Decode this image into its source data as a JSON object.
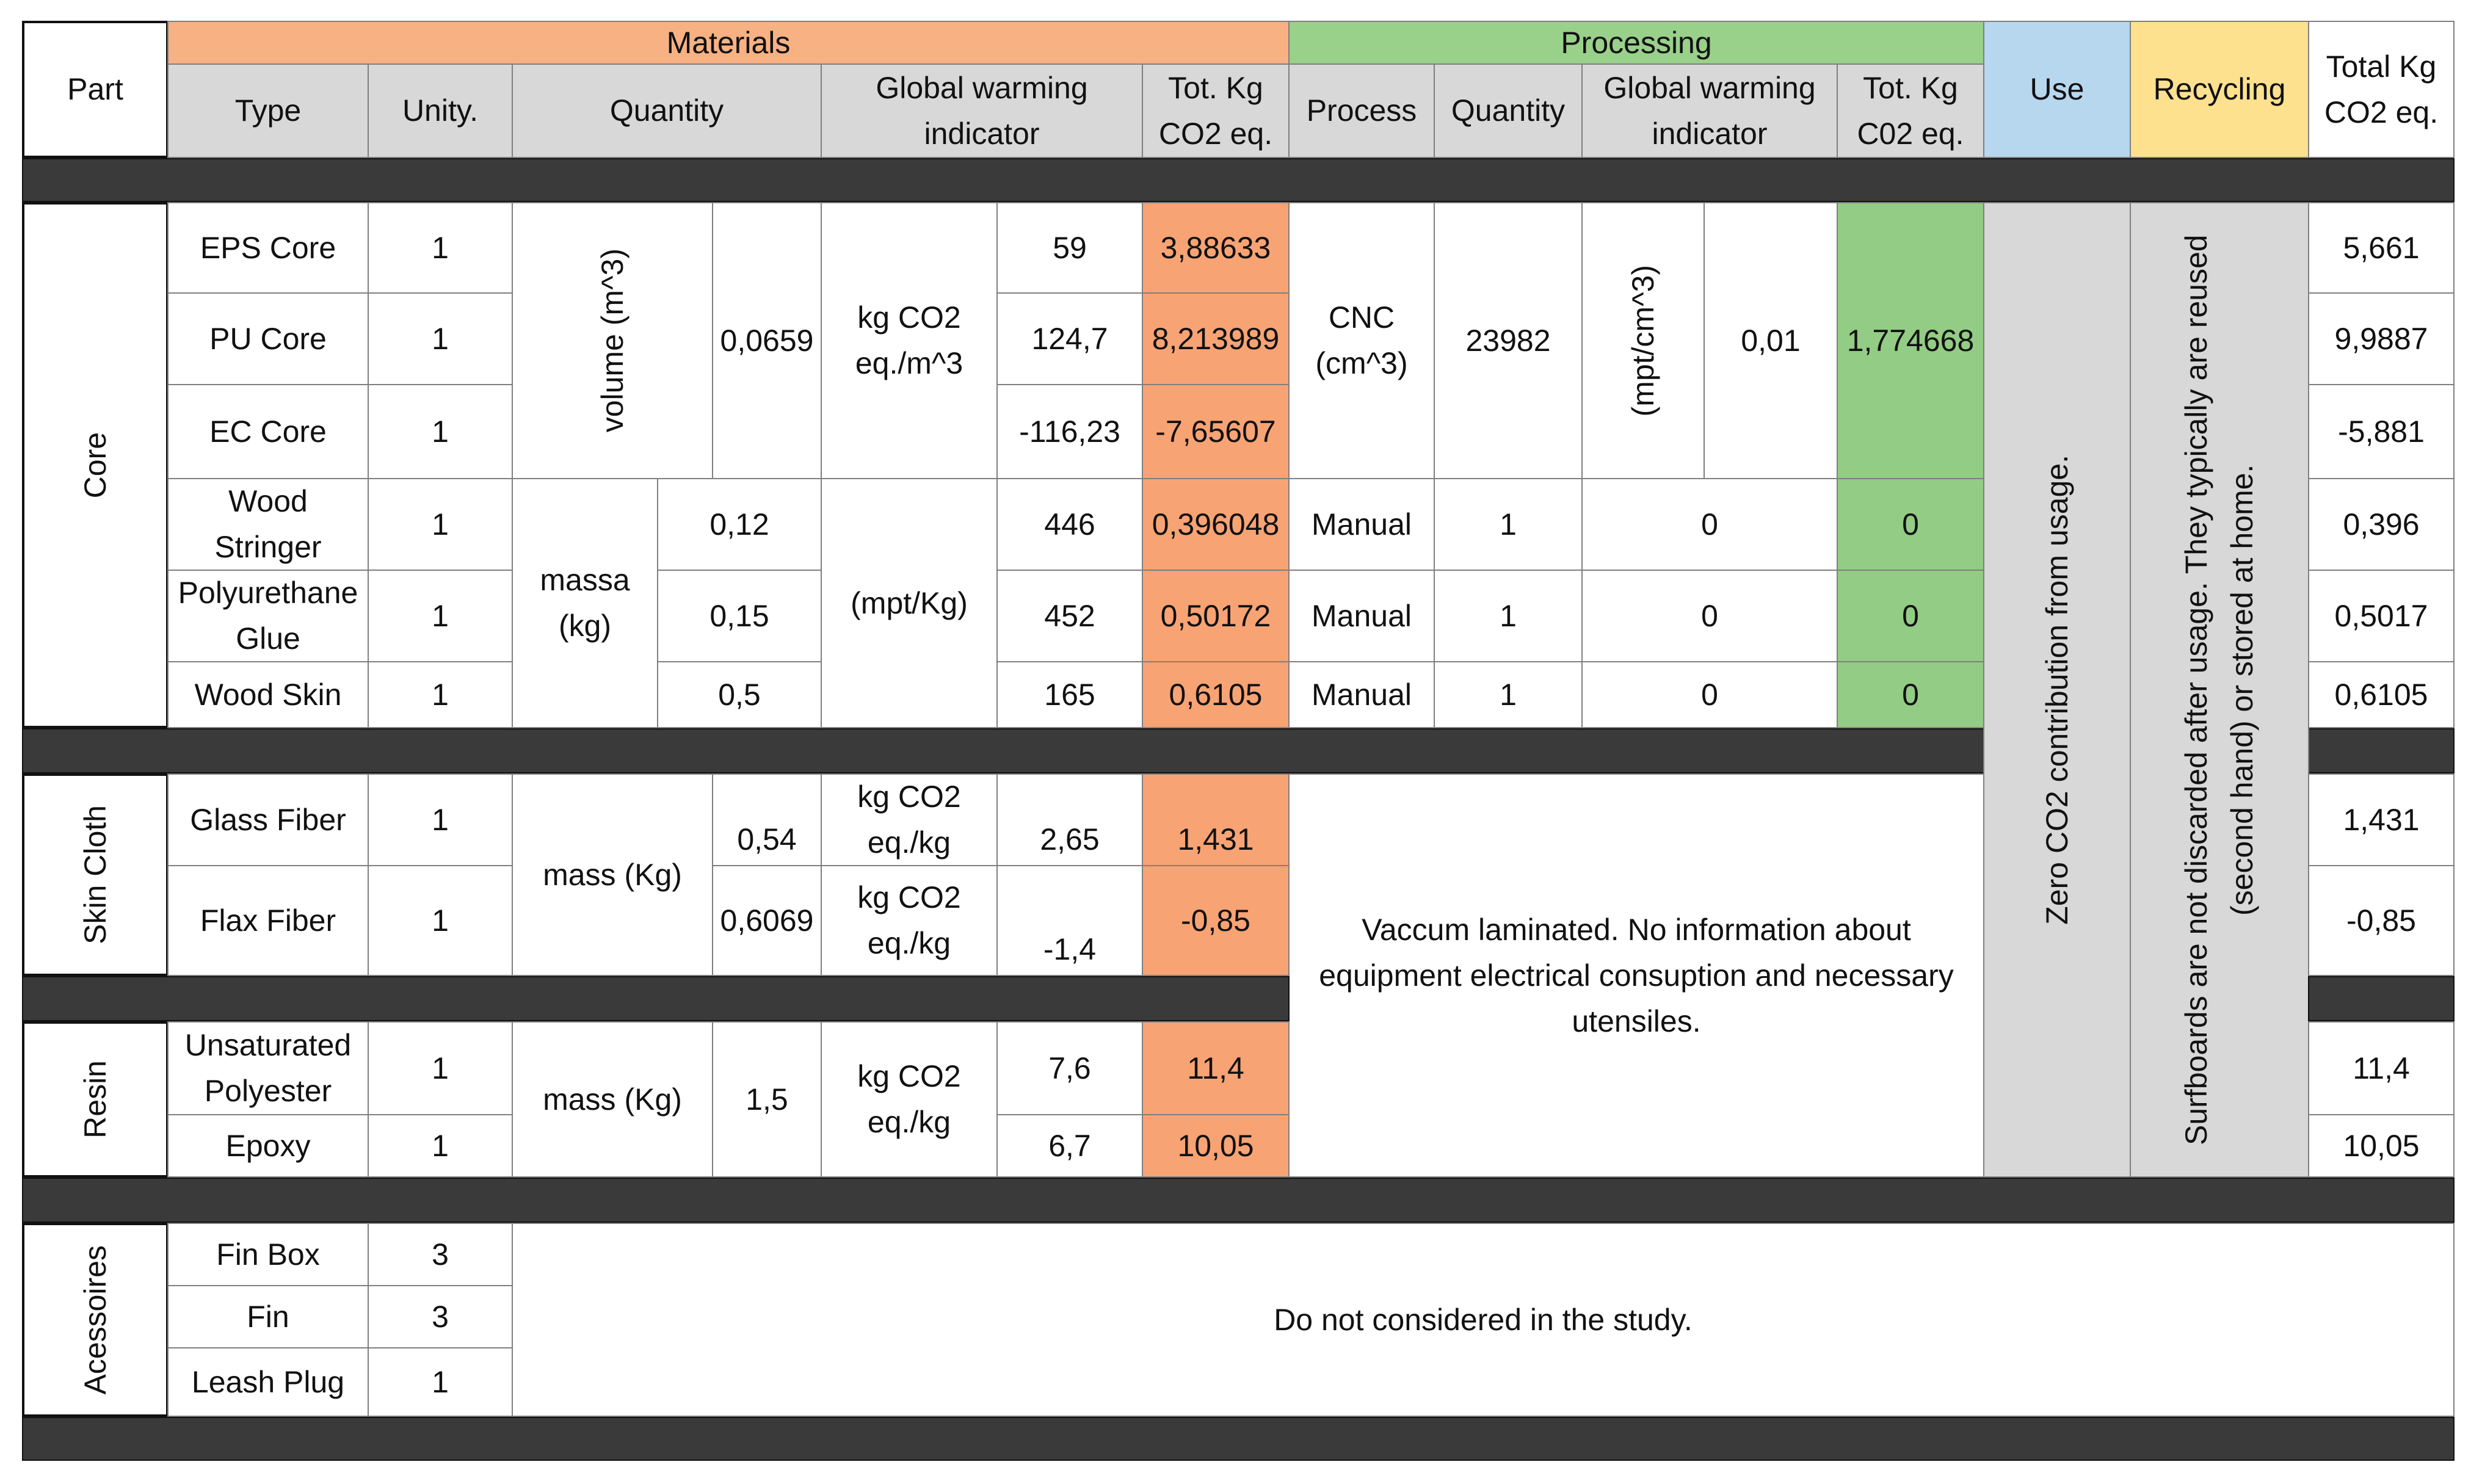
{
  "header": {
    "part": "Part",
    "materials": "Materials",
    "processing": "Processing",
    "use": "Use",
    "recycling": "Recycling",
    "total": "Total Kg CO2 eq.",
    "type": "Type",
    "unity": "Unity.",
    "quantity": "Quantity",
    "gwi": "Global warming indicator",
    "tot_mat": "Tot. Kg CO2 eq.",
    "process": "Process",
    "proc_quantity": "Quantity",
    "proc_gwi": "Global warming indicator",
    "tot_proc": "Tot. Kg C02 eq."
  },
  "groups": {
    "core": "Core",
    "skin_cloth": "Skin Cloth",
    "resin": "Resin",
    "accessories": "Acessoires"
  },
  "core": {
    "rows": [
      {
        "type": "EPS Core",
        "unity": "1",
        "gwi": "59",
        "tot": "3,88633",
        "total": "5,661"
      },
      {
        "type": "PU Core",
        "unity": "1",
        "gwi": "124,7",
        "tot": "8,213989",
        "total": "9,9887"
      },
      {
        "type": "EC Core",
        "unity": "1",
        "gwi": "-116,23",
        "tot": "-7,65607",
        "total": "-5,881"
      },
      {
        "type": "Wood Stringer",
        "unity": "1",
        "qty": "0,12",
        "gwi": "446",
        "tot": "0,396048",
        "process": "Manual",
        "proc_qty": "1",
        "proc_gwi": "0",
        "proc_tot": "0",
        "total": "0,396"
      },
      {
        "type": "Polyurethane Glue",
        "unity": "1",
        "qty": "0,15",
        "gwi": "452",
        "tot": "0,50172",
        "process": "Manual",
        "proc_qty": "1",
        "proc_gwi": "0",
        "proc_tot": "0",
        "total": "0,5017"
      },
      {
        "type": "Wood Skin",
        "unity": "1",
        "qty": "0,5",
        "gwi": "165",
        "tot": "0,6105",
        "process": "Manual",
        "proc_qty": "1",
        "proc_gwi": "0",
        "proc_tot": "0",
        "total": "0,6105"
      }
    ],
    "volume_label": "volume (m^3)",
    "volume_value": "0,0659",
    "volume_unit": "kg CO2 eq./m^3",
    "mass_label": "massa (kg)",
    "mass_unit": "(mpt/Kg)",
    "cnc_process": "CNC (cm^3)",
    "cnc_qty": "23982",
    "cnc_unit": "(mpt/cm^3)",
    "cnc_gwi": "0,01",
    "cnc_tot": "1,774668"
  },
  "skin_cloth": {
    "rows": [
      {
        "type": "Glass Fiber",
        "unity": "1",
        "qty": "0,54",
        "unit": "kg CO2 eq./kg",
        "gwi": "2,65",
        "tot": "1,431",
        "total": "1,431"
      },
      {
        "type": "Flax Fiber",
        "unity": "1",
        "qty": "0,6069",
        "unit": "kg CO2 eq./kg",
        "gwi": "-1,4",
        "tot": "-0,85",
        "total": "-0,85"
      }
    ],
    "mass_label": "mass (Kg)"
  },
  "resin": {
    "rows": [
      {
        "type": "Unsaturated Polyester",
        "unity": "1",
        "gwi": "7,6",
        "tot": "11,4",
        "total": "11,4"
      },
      {
        "type": "Epoxy",
        "unity": "1",
        "gwi": "6,7",
        "tot": "10,05",
        "total": "10,05"
      }
    ],
    "mass_label": "mass (Kg)",
    "qty": "1,5",
    "unit": "kg CO2 eq./kg"
  },
  "accessories": {
    "rows": [
      {
        "type": "Fin Box",
        "unity": "3"
      },
      {
        "type": "Fin",
        "unity": "3"
      },
      {
        "type": "Leash Plug",
        "unity": "1"
      }
    ],
    "note": "Do not considered in the study."
  },
  "process_note": "Vaccum laminated. No information about equipment electrical consuption and necessary utensiles.",
  "use_note": "Zero CO2 contribution from usage.",
  "recycling_note": "Surfboards are not discarded after usage. They typically are reused (second hand) or stored at home."
}
